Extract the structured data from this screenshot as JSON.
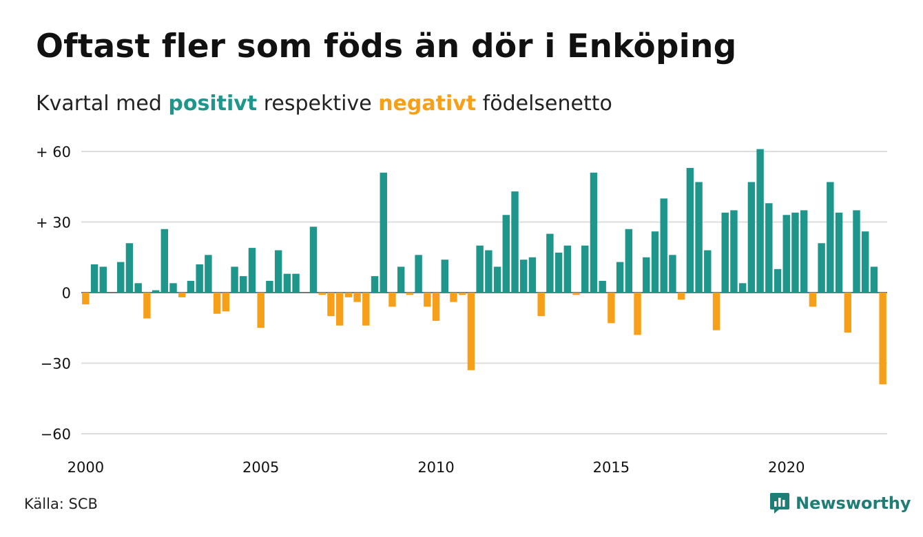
{
  "title": "Oftast fler som föds än dör i Enköping",
  "subtitle": {
    "prefix": "Kvartal med ",
    "positive_word": "positivt",
    "middle": " respektive ",
    "negative_word": "negativt",
    "suffix": " födelsenetto"
  },
  "source": "Källa: SCB",
  "brand": {
    "name": "Newsworthy",
    "icon": "newsworthy-logo-icon"
  },
  "colors": {
    "positive": "#1f968b",
    "negative": "#f6a01a",
    "grid": "#dddddd",
    "text": "#111111",
    "brand": "#1e7e76"
  },
  "chart_data": {
    "type": "bar",
    "title": "Oftast fler som föds än dör i Enköping",
    "subtitle": "Kvartal med positivt respektive negativt födelsenetto",
    "xlabel": "",
    "ylabel": "",
    "ylim": [
      -60,
      60
    ],
    "y_ticks": [
      {
        "value": 60,
        "label": "+ 60"
      },
      {
        "value": 30,
        "label": "+ 30"
      },
      {
        "value": 0,
        "label": "0"
      },
      {
        "value": -30,
        "label": "−30"
      },
      {
        "value": -60,
        "label": "−60"
      }
    ],
    "x_ticks": [
      {
        "year": 2000,
        "label": "2000"
      },
      {
        "year": 2005,
        "label": "2005"
      },
      {
        "year": 2010,
        "label": "2010"
      },
      {
        "year": 2015,
        "label": "2015"
      },
      {
        "year": 2020,
        "label": "2020"
      }
    ],
    "grid": true,
    "start_year": 2000,
    "start_quarter": 1,
    "values": [
      -5,
      12,
      11,
      0,
      13,
      21,
      4,
      -11,
      1,
      27,
      4,
      -2,
      5,
      12,
      16,
      -9,
      -8,
      11,
      7,
      19,
      -15,
      5,
      18,
      8,
      8,
      0,
      28,
      -1,
      -10,
      -14,
      -2,
      -4,
      -14,
      7,
      51,
      -6,
      11,
      -1,
      16,
      -6,
      -12,
      14,
      -4,
      -1,
      -33,
      20,
      18,
      11,
      33,
      43,
      14,
      15,
      -10,
      25,
      17,
      20,
      -1,
      20,
      51,
      5,
      -13,
      13,
      27,
      -18,
      15,
      26,
      40,
      16,
      -3,
      53,
      47,
      18,
      -16,
      34,
      35,
      4,
      47,
      61,
      38,
      10,
      33,
      34,
      35,
      -6,
      21,
      47,
      34,
      -17,
      35,
      26,
      11,
      -39
    ]
  }
}
